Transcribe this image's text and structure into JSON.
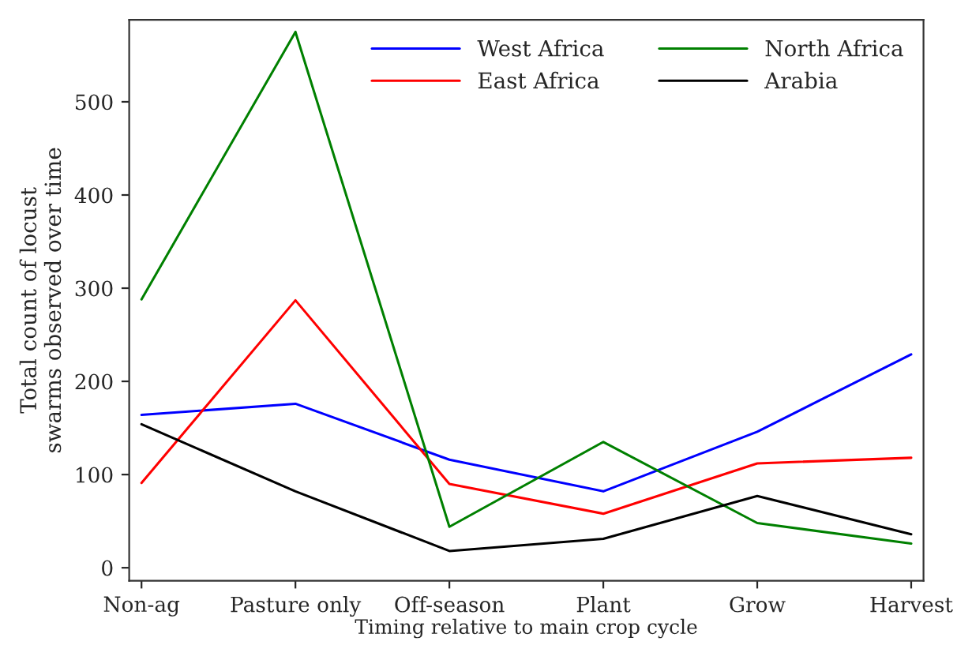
{
  "chart_data": {
    "type": "line",
    "xlabel": "Timing relative to main crop cycle",
    "ylabel": "Total count of locust\nswarms observed over time",
    "categories": [
      "Non-ag",
      "Pasture only",
      "Off-season",
      "Plant",
      "Grow",
      "Harvest"
    ],
    "series": [
      {
        "name": "West Africa",
        "color": "#0000ff",
        "values": [
          164,
          176,
          116,
          82,
          146,
          229
        ]
      },
      {
        "name": "East Africa",
        "color": "#ff0000",
        "values": [
          91,
          287,
          90,
          58,
          112,
          118
        ]
      },
      {
        "name": "North Africa",
        "color": "#008000",
        "values": [
          288,
          575,
          44,
          135,
          48,
          26
        ]
      },
      {
        "name": "Arabia",
        "color": "#000000",
        "values": [
          154,
          82,
          18,
          31,
          77,
          36
        ]
      }
    ],
    "ylim": [
      -14,
      588
    ],
    "yticks": [
      0,
      100,
      200,
      300,
      400,
      500
    ],
    "grid": false,
    "legend": "top right",
    "marker": "none",
    "line_style": "solid"
  }
}
